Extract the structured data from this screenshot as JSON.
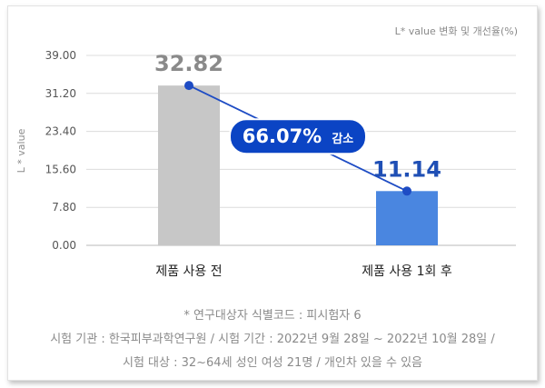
{
  "chart_data": {
    "type": "bar",
    "title": "",
    "subtitle": "L* value 변화 및 개선율(%)",
    "ylabel": "L * value",
    "xlabel": "",
    "ylim": [
      0,
      39
    ],
    "yticks": [
      "39.00",
      "31.20",
      "23.40",
      "15.60",
      "7.80",
      "0.00"
    ],
    "categories": [
      "제품 사용 전",
      "제품 사용 1회 후"
    ],
    "values": [
      32.82,
      11.14
    ],
    "value_labels": [
      "32.82",
      "11.14"
    ],
    "bar_colors": [
      "#c7c7c7",
      "#4a86e0"
    ],
    "value_label_colors": [
      "#8a8a8a",
      "#1f4fb5"
    ],
    "line_color": "#1e4cc4",
    "annotation": {
      "value": "66.07%",
      "text": "감소",
      "background": "#0b44c4",
      "color": "#ffffff"
    }
  },
  "footnotes": {
    "subject_code": "* 연구대상자 식별코드 : 피시험자 6",
    "institution": "시험 기관 : 한국피부과학연구원 / 시험 기간 : 2022년 9월 28일 ~ 2022년 10월 28일 /",
    "subjects": "시험 대상 : 32~64세 성인 여성 21명 / 개인차 있을 수 있음"
  }
}
